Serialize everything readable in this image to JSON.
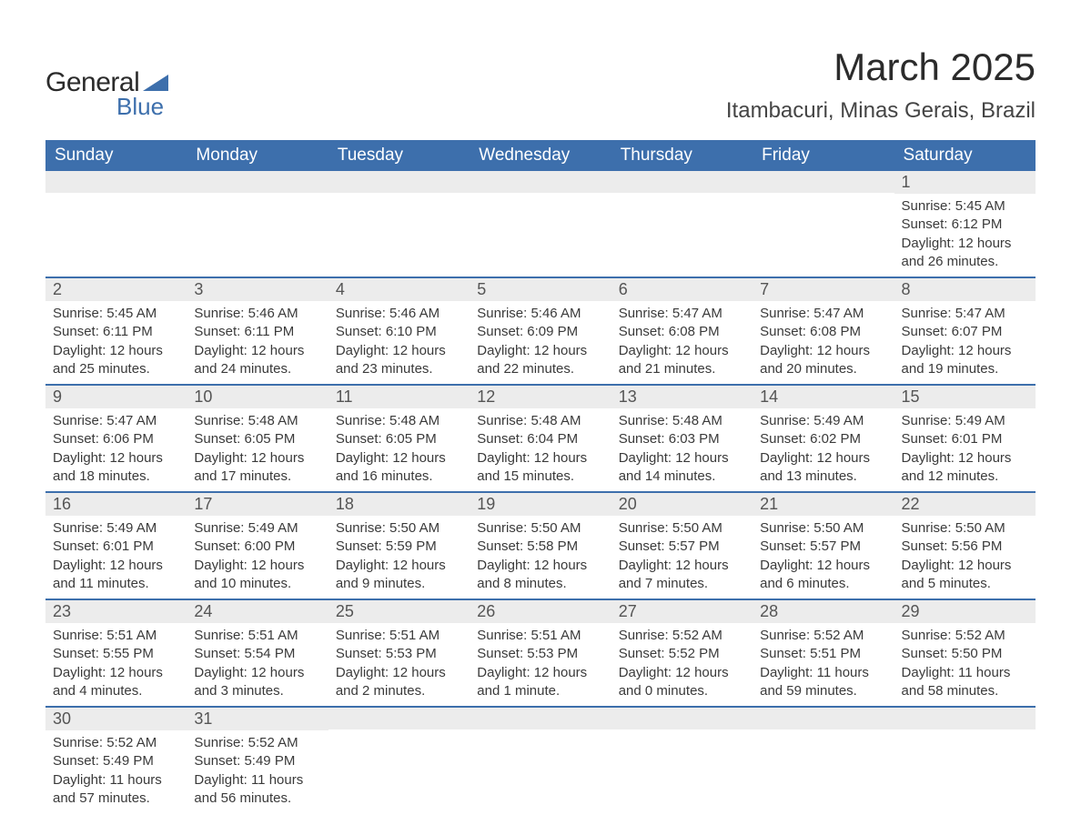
{
  "logo": {
    "text1": "General",
    "text2": "Blue",
    "accent_color": "#3d6fac"
  },
  "title": "March 2025",
  "location": "Itambacuri, Minas Gerais, Brazil",
  "colors": {
    "header_bg": "#3d6fac",
    "header_text": "#ffffff",
    "daynum_bg": "#ececec",
    "row_separator": "#3d6fac",
    "body_text": "#3a3a3a"
  },
  "typography": {
    "title_fontsize": 42,
    "location_fontsize": 24,
    "weekday_fontsize": 19,
    "daynum_fontsize": 18,
    "body_fontsize": 15
  },
  "calendar": {
    "type": "table",
    "weekdays": [
      "Sunday",
      "Monday",
      "Tuesday",
      "Wednesday",
      "Thursday",
      "Friday",
      "Saturday"
    ],
    "weeks": [
      [
        null,
        null,
        null,
        null,
        null,
        null,
        {
          "n": "1",
          "sunrise": "Sunrise: 5:45 AM",
          "sunset": "Sunset: 6:12 PM",
          "day1": "Daylight: 12 hours",
          "day2": "and 26 minutes."
        }
      ],
      [
        {
          "n": "2",
          "sunrise": "Sunrise: 5:45 AM",
          "sunset": "Sunset: 6:11 PM",
          "day1": "Daylight: 12 hours",
          "day2": "and 25 minutes."
        },
        {
          "n": "3",
          "sunrise": "Sunrise: 5:46 AM",
          "sunset": "Sunset: 6:11 PM",
          "day1": "Daylight: 12 hours",
          "day2": "and 24 minutes."
        },
        {
          "n": "4",
          "sunrise": "Sunrise: 5:46 AM",
          "sunset": "Sunset: 6:10 PM",
          "day1": "Daylight: 12 hours",
          "day2": "and 23 minutes."
        },
        {
          "n": "5",
          "sunrise": "Sunrise: 5:46 AM",
          "sunset": "Sunset: 6:09 PM",
          "day1": "Daylight: 12 hours",
          "day2": "and 22 minutes."
        },
        {
          "n": "6",
          "sunrise": "Sunrise: 5:47 AM",
          "sunset": "Sunset: 6:08 PM",
          "day1": "Daylight: 12 hours",
          "day2": "and 21 minutes."
        },
        {
          "n": "7",
          "sunrise": "Sunrise: 5:47 AM",
          "sunset": "Sunset: 6:08 PM",
          "day1": "Daylight: 12 hours",
          "day2": "and 20 minutes."
        },
        {
          "n": "8",
          "sunrise": "Sunrise: 5:47 AM",
          "sunset": "Sunset: 6:07 PM",
          "day1": "Daylight: 12 hours",
          "day2": "and 19 minutes."
        }
      ],
      [
        {
          "n": "9",
          "sunrise": "Sunrise: 5:47 AM",
          "sunset": "Sunset: 6:06 PM",
          "day1": "Daylight: 12 hours",
          "day2": "and 18 minutes."
        },
        {
          "n": "10",
          "sunrise": "Sunrise: 5:48 AM",
          "sunset": "Sunset: 6:05 PM",
          "day1": "Daylight: 12 hours",
          "day2": "and 17 minutes."
        },
        {
          "n": "11",
          "sunrise": "Sunrise: 5:48 AM",
          "sunset": "Sunset: 6:05 PM",
          "day1": "Daylight: 12 hours",
          "day2": "and 16 minutes."
        },
        {
          "n": "12",
          "sunrise": "Sunrise: 5:48 AM",
          "sunset": "Sunset: 6:04 PM",
          "day1": "Daylight: 12 hours",
          "day2": "and 15 minutes."
        },
        {
          "n": "13",
          "sunrise": "Sunrise: 5:48 AM",
          "sunset": "Sunset: 6:03 PM",
          "day1": "Daylight: 12 hours",
          "day2": "and 14 minutes."
        },
        {
          "n": "14",
          "sunrise": "Sunrise: 5:49 AM",
          "sunset": "Sunset: 6:02 PM",
          "day1": "Daylight: 12 hours",
          "day2": "and 13 minutes."
        },
        {
          "n": "15",
          "sunrise": "Sunrise: 5:49 AM",
          "sunset": "Sunset: 6:01 PM",
          "day1": "Daylight: 12 hours",
          "day2": "and 12 minutes."
        }
      ],
      [
        {
          "n": "16",
          "sunrise": "Sunrise: 5:49 AM",
          "sunset": "Sunset: 6:01 PM",
          "day1": "Daylight: 12 hours",
          "day2": "and 11 minutes."
        },
        {
          "n": "17",
          "sunrise": "Sunrise: 5:49 AM",
          "sunset": "Sunset: 6:00 PM",
          "day1": "Daylight: 12 hours",
          "day2": "and 10 minutes."
        },
        {
          "n": "18",
          "sunrise": "Sunrise: 5:50 AM",
          "sunset": "Sunset: 5:59 PM",
          "day1": "Daylight: 12 hours",
          "day2": "and 9 minutes."
        },
        {
          "n": "19",
          "sunrise": "Sunrise: 5:50 AM",
          "sunset": "Sunset: 5:58 PM",
          "day1": "Daylight: 12 hours",
          "day2": "and 8 minutes."
        },
        {
          "n": "20",
          "sunrise": "Sunrise: 5:50 AM",
          "sunset": "Sunset: 5:57 PM",
          "day1": "Daylight: 12 hours",
          "day2": "and 7 minutes."
        },
        {
          "n": "21",
          "sunrise": "Sunrise: 5:50 AM",
          "sunset": "Sunset: 5:57 PM",
          "day1": "Daylight: 12 hours",
          "day2": "and 6 minutes."
        },
        {
          "n": "22",
          "sunrise": "Sunrise: 5:50 AM",
          "sunset": "Sunset: 5:56 PM",
          "day1": "Daylight: 12 hours",
          "day2": "and 5 minutes."
        }
      ],
      [
        {
          "n": "23",
          "sunrise": "Sunrise: 5:51 AM",
          "sunset": "Sunset: 5:55 PM",
          "day1": "Daylight: 12 hours",
          "day2": "and 4 minutes."
        },
        {
          "n": "24",
          "sunrise": "Sunrise: 5:51 AM",
          "sunset": "Sunset: 5:54 PM",
          "day1": "Daylight: 12 hours",
          "day2": "and 3 minutes."
        },
        {
          "n": "25",
          "sunrise": "Sunrise: 5:51 AM",
          "sunset": "Sunset: 5:53 PM",
          "day1": "Daylight: 12 hours",
          "day2": "and 2 minutes."
        },
        {
          "n": "26",
          "sunrise": "Sunrise: 5:51 AM",
          "sunset": "Sunset: 5:53 PM",
          "day1": "Daylight: 12 hours",
          "day2": "and 1 minute."
        },
        {
          "n": "27",
          "sunrise": "Sunrise: 5:52 AM",
          "sunset": "Sunset: 5:52 PM",
          "day1": "Daylight: 12 hours",
          "day2": "and 0 minutes."
        },
        {
          "n": "28",
          "sunrise": "Sunrise: 5:52 AM",
          "sunset": "Sunset: 5:51 PM",
          "day1": "Daylight: 11 hours",
          "day2": "and 59 minutes."
        },
        {
          "n": "29",
          "sunrise": "Sunrise: 5:52 AM",
          "sunset": "Sunset: 5:50 PM",
          "day1": "Daylight: 11 hours",
          "day2": "and 58 minutes."
        }
      ],
      [
        {
          "n": "30",
          "sunrise": "Sunrise: 5:52 AM",
          "sunset": "Sunset: 5:49 PM",
          "day1": "Daylight: 11 hours",
          "day2": "and 57 minutes."
        },
        {
          "n": "31",
          "sunrise": "Sunrise: 5:52 AM",
          "sunset": "Sunset: 5:49 PM",
          "day1": "Daylight: 11 hours",
          "day2": "and 56 minutes."
        },
        null,
        null,
        null,
        null,
        null
      ]
    ]
  }
}
